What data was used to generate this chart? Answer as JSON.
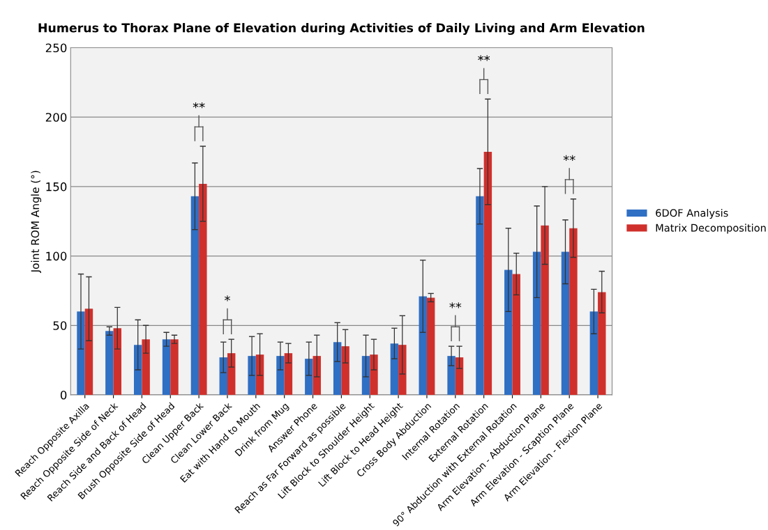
{
  "chart_data": {
    "type": "bar",
    "title": "Humerus to Thorax Plane of Elevation during Activities of Daily Living and Arm Elevation",
    "ylabel": "Joint ROM Angle (°)",
    "categories": [
      "Reach Opposite Axilla",
      "Reach Opposite Side of Neck",
      "Reach Side and Back of Head",
      "Brush Opposite Side of Head",
      "Clean Upper Back",
      "Clean Lower Back",
      "Eat with Hand to Mouth",
      "Drink from Mug",
      "Answer Phone",
      "Reach as Far Forward as possible",
      "Lift Block to Shoulder Height",
      "Lift Block to Head Height",
      "Cross Body Abduction",
      "Internal Rotation",
      "External Rotation",
      "90° Abduction with External Rotation",
      "Arm Elevation - Abduction Plane",
      "Arm Elevation - Scaption Plane",
      "Arm Elevation - Flexion Plane"
    ],
    "series": [
      {
        "name": "6DOF Analysis",
        "color": "#2f6fc4",
        "values": [
          60,
          46,
          36,
          40,
          143,
          27,
          28,
          28,
          26,
          38,
          28,
          37,
          71,
          28,
          143,
          90,
          103,
          103,
          60
        ],
        "errors": [
          27,
          3,
          18,
          5,
          24,
          11,
          14,
          10,
          12,
          14,
          15,
          11,
          26,
          7,
          20,
          30,
          33,
          23,
          16
        ]
      },
      {
        "name": "Matrix Decomposition",
        "color": "#d0302c",
        "values": [
          62,
          48,
          40,
          40,
          152,
          30,
          29,
          30,
          28,
          35,
          29,
          36,
          70,
          27,
          175,
          87,
          122,
          120,
          74
        ],
        "errors": [
          23,
          15,
          10,
          3,
          27,
          10,
          15,
          7,
          15,
          12,
          11,
          21,
          3,
          8,
          38,
          15,
          28,
          21,
          15
        ]
      }
    ],
    "ylim": [
      0,
      250
    ],
    "yticks": [
      0,
      50,
      100,
      150,
      200,
      250
    ],
    "grid": "y",
    "legend": "right",
    "annotations": [
      "**",
      "*",
      "**",
      "**",
      "**"
    ]
  }
}
